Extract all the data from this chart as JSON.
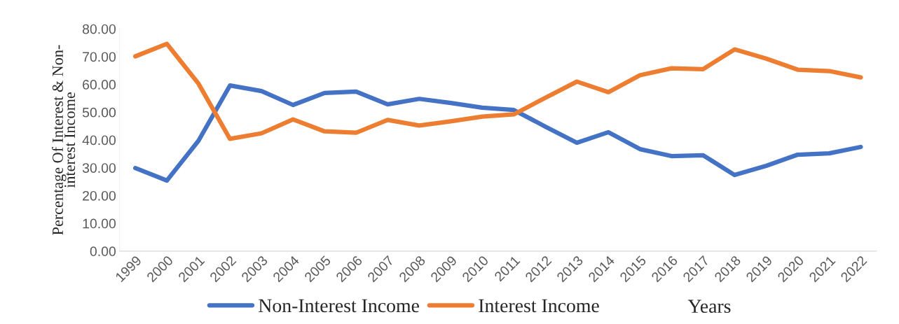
{
  "chart_data": {
    "type": "line",
    "categories": [
      "1999",
      "2000",
      "2001",
      "2002",
      "2003",
      "2004",
      "2005",
      "2006",
      "2007",
      "2008",
      "2009",
      "2010",
      "2011",
      "2012",
      "2013",
      "2014",
      "2015",
      "2016",
      "2017",
      "2018",
      "2019",
      "2020",
      "2021",
      "2022"
    ],
    "series": [
      {
        "name": "Non-Interest Income",
        "color": "#4472c4",
        "values": [
          29.9,
          25.4,
          39.7,
          59.6,
          57.6,
          52.6,
          56.9,
          57.4,
          52.8,
          54.8,
          53.3,
          51.6,
          50.8,
          44.8,
          39.0,
          42.8,
          36.7,
          34.2,
          34.5,
          27.4,
          30.7,
          34.7,
          35.2,
          37.5
        ]
      },
      {
        "name": "Interest Income",
        "color": "#ed7d31",
        "values": [
          70.1,
          74.6,
          60.3,
          40.4,
          42.4,
          47.4,
          43.1,
          42.6,
          47.2,
          45.2,
          46.7,
          48.4,
          49.2,
          55.2,
          61.0,
          57.2,
          63.3,
          65.8,
          65.5,
          72.6,
          69.3,
          65.3,
          64.8,
          62.5
        ]
      }
    ],
    "xlabel": "Years",
    "ylabel": "Percentage Of Interest & Non-\ninterest Income",
    "ylim": [
      0,
      80
    ],
    "yticks": [
      {
        "value": 0,
        "label": "0.00"
      },
      {
        "value": 10,
        "label": "10.00"
      },
      {
        "value": 20,
        "label": "20.00"
      },
      {
        "value": 30,
        "label": "30.00"
      },
      {
        "value": 40,
        "label": "40.00"
      },
      {
        "value": 50,
        "label": "50.00"
      },
      {
        "value": 60,
        "label": "60.00"
      },
      {
        "value": 70,
        "label": "70.00"
      },
      {
        "value": 80,
        "label": "80.00"
      }
    ],
    "grid": false,
    "legend": "bottom",
    "marker": "none",
    "line_style": "solid"
  }
}
